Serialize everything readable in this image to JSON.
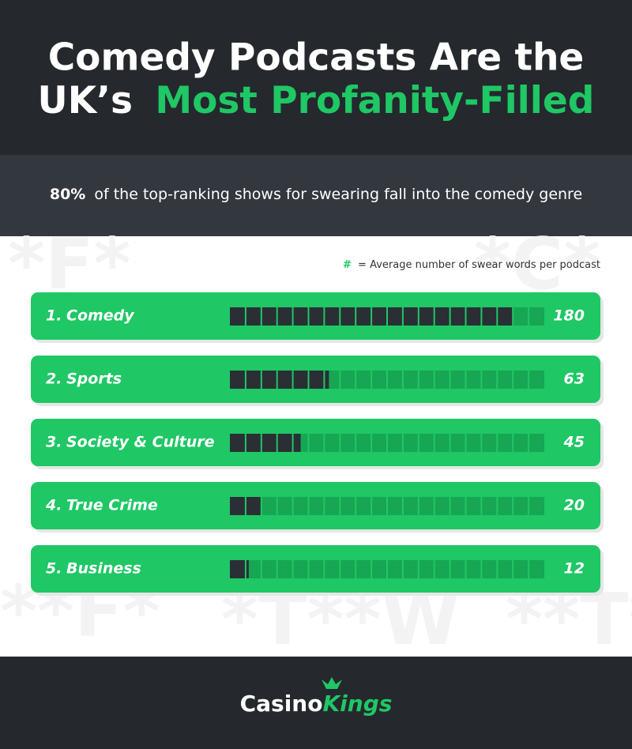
{
  "chart_data": {
    "type": "bar",
    "title_line1": "Comedy Podcasts Are the",
    "title_line2_start": "UK’s",
    "title_line2_highlight": "Most Profanity-Filled",
    "subtitle_bold": "80%",
    "subtitle_rest": "of the top-ranking shows for swearing fall into the comedy genre",
    "legend_symbol": "#",
    "legend_text": "= Average number of swear words per podcast",
    "ranks": [
      "1.",
      "2.",
      "3.",
      "4.",
      "5."
    ],
    "categories": [
      "Comedy",
      "Sports",
      "Society & Culture",
      "True Crime",
      "Business"
    ],
    "values": [
      180,
      63,
      45,
      20,
      12
    ],
    "xlim": [
      0,
      200
    ],
    "color": "#2a2e35",
    "brand_start": "Casino",
    "brand_end": "Kings"
  }
}
